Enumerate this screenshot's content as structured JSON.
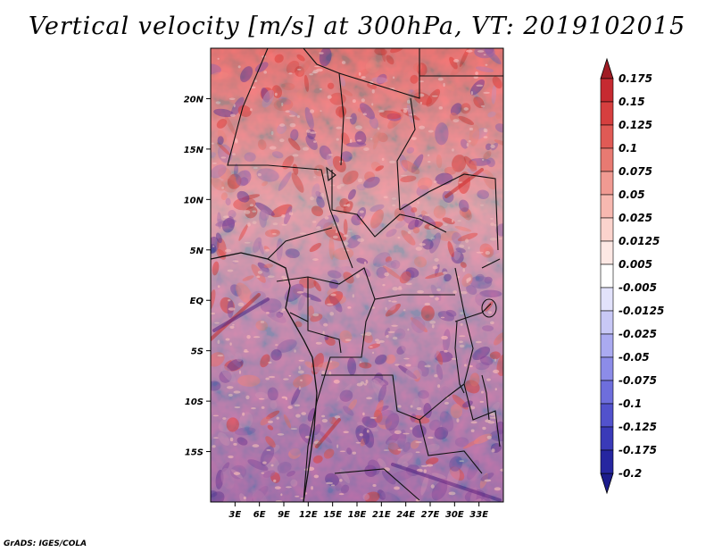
{
  "title": "Vertical velocity [m/s] at 300hPa, VT: 2019102015",
  "credit": "GrADS: IGES/COLA",
  "map": {
    "lon_range": [
      0,
      36
    ],
    "lat_range": [
      -20,
      25
    ],
    "lat_ticks": [
      {
        "value": 20,
        "label": "20N"
      },
      {
        "value": 15,
        "label": "15N"
      },
      {
        "value": 10,
        "label": "10N"
      },
      {
        "value": 5,
        "label": "5N"
      },
      {
        "value": 0,
        "label": "EQ"
      },
      {
        "value": -5,
        "label": "5S"
      },
      {
        "value": -10,
        "label": "10S"
      },
      {
        "value": -15,
        "label": "15S"
      }
    ],
    "lon_ticks": [
      {
        "value": 3,
        "label": "3E"
      },
      {
        "value": 6,
        "label": "6E"
      },
      {
        "value": 9,
        "label": "9E"
      },
      {
        "value": 12,
        "label": "12E"
      },
      {
        "value": 15,
        "label": "15E"
      },
      {
        "value": 18,
        "label": "18E"
      },
      {
        "value": 21,
        "label": "21E"
      },
      {
        "value": 24,
        "label": "24E"
      },
      {
        "value": 27,
        "label": "27E"
      },
      {
        "value": 30,
        "label": "30E"
      },
      {
        "value": 33,
        "label": "33E"
      }
    ]
  },
  "colorbar": {
    "levels": [
      {
        "label": "0.175",
        "color": "#b2182b"
      },
      {
        "label": "0.15",
        "color": "#c62a31"
      },
      {
        "label": "0.125",
        "color": "#d63f3f"
      },
      {
        "label": "0.1",
        "color": "#e05a55"
      },
      {
        "label": "0.075",
        "color": "#e87a72"
      },
      {
        "label": "0.05",
        "color": "#f09a92"
      },
      {
        "label": "0.025",
        "color": "#f7b8b0"
      },
      {
        "label": "0.0125",
        "color": "#fbd3cd"
      },
      {
        "label": "0.005",
        "color": "#fde8e4"
      },
      {
        "label": "-0.005",
        "color": "#ffffff"
      },
      {
        "label": "-0.0125",
        "color": "#e2e2fb"
      },
      {
        "label": "-0.025",
        "color": "#c8c8f6"
      },
      {
        "label": "-0.05",
        "color": "#aaaaf0"
      },
      {
        "label": "-0.075",
        "color": "#8c8ce8"
      },
      {
        "label": "-0.1",
        "color": "#6e6edc"
      },
      {
        "label": "-0.125",
        "color": "#5252cc"
      },
      {
        "label": "-0.175",
        "color": "#3a3ab8"
      },
      {
        "label": "-0.2",
        "color": "#2626a0"
      }
    ],
    "top_color": "#a01c24",
    "bottom_color": "#1c1c8c"
  }
}
